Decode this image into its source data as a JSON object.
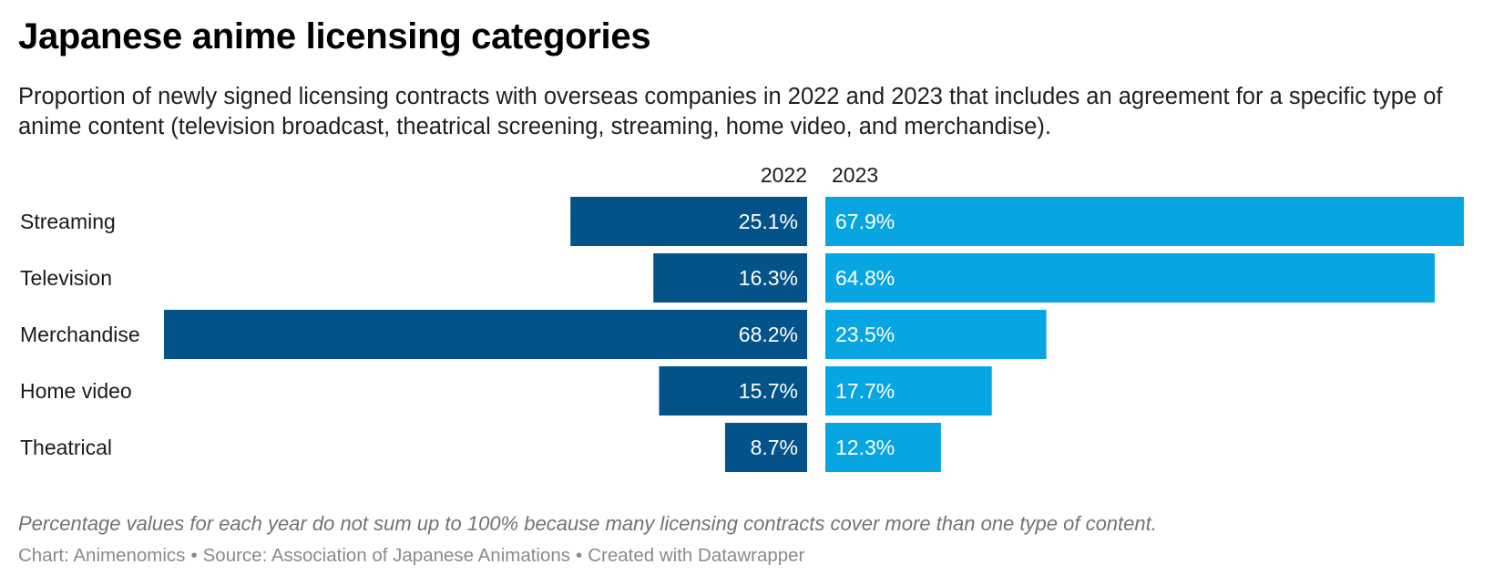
{
  "title": "Japanese anime licensing categories",
  "subtitle": "Proportion of newly signed licensing contracts with overseas companies in 2022 and 2023 that includes an agreement for a specific type of anime content (television broadcast, theatrical screening, streaming, home video, and merchandise).",
  "note": "Percentage values for each year do not sum up to 100% because many licensing contracts cover more than one type of content.",
  "footer": {
    "chart_credit": "Chart: Animenomics",
    "source": "Source: Association of Japanese Animations",
    "created_with": "Created with Datawrapper",
    "separator": "•"
  },
  "colors": {
    "series_2022": "#03538a",
    "series_2023": "#08a5e3",
    "bar_label": "#ffffff",
    "text": "#1a1a1a"
  },
  "chart_data": {
    "type": "bar",
    "orientation": "horizontal-butterfly",
    "categories": [
      "Streaming",
      "Television",
      "Merchandise",
      "Home video",
      "Theatrical"
    ],
    "series": [
      {
        "name": "2022",
        "values": [
          25.1,
          16.3,
          68.2,
          15.7,
          8.7
        ],
        "labels": [
          "25.1%",
          "16.3%",
          "68.2%",
          "15.7%",
          "8.7%"
        ]
      },
      {
        "name": "2023",
        "values": [
          67.9,
          64.8,
          23.5,
          17.7,
          12.3
        ],
        "labels": [
          "67.9%",
          "64.8%",
          "23.5%",
          "17.7%",
          "12.3%"
        ]
      }
    ],
    "unit": "%",
    "xlim": [
      0,
      68.2
    ]
  }
}
